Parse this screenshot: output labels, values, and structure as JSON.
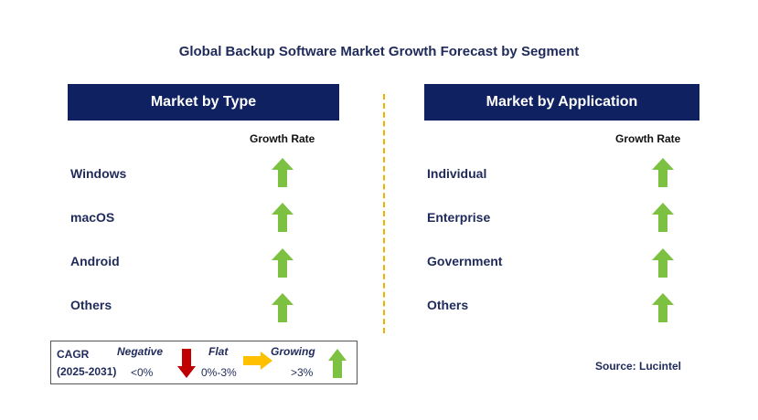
{
  "title": "Global Backup Software Market Growth Forecast by Segment",
  "left_panel": {
    "header": "Market by Type",
    "growth_label": "Growth Rate",
    "items": [
      {
        "label": "Windows",
        "trend": "growing"
      },
      {
        "label": "macOS",
        "trend": "growing"
      },
      {
        "label": "Android",
        "trend": "growing"
      },
      {
        "label": "Others",
        "trend": "growing"
      }
    ]
  },
  "right_panel": {
    "header": "Market by Application",
    "growth_label": "Growth Rate",
    "items": [
      {
        "label": "Individual",
        "trend": "growing"
      },
      {
        "label": "Enterprise",
        "trend": "growing"
      },
      {
        "label": "Government",
        "trend": "growing"
      },
      {
        "label": "Others",
        "trend": "growing"
      }
    ]
  },
  "legend": {
    "cagr": "CAGR",
    "period": "(2025-2031)",
    "negative_label": "Negative",
    "negative_value": "<0%",
    "flat_label": "Flat",
    "flat_value": "0%-3%",
    "growing_label": "Growing",
    "growing_value": ">3%"
  },
  "source": "Source: Lucintel",
  "colors": {
    "header_bg": "#0f2160",
    "growing": "#7dc142",
    "negative": "#c00000",
    "flat": "#ffc000",
    "divider": "#f0b000"
  }
}
